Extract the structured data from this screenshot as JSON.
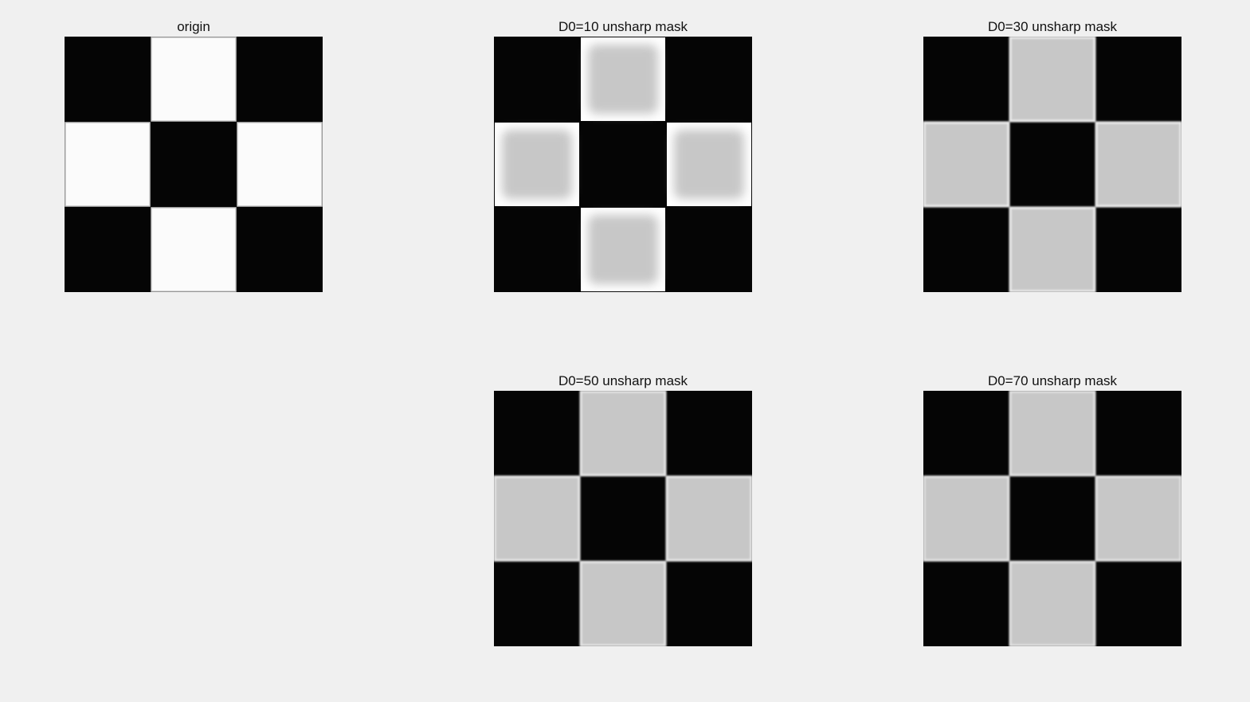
{
  "figure": {
    "background": "#f0f0f0",
    "panels": [
      {
        "id": "origin",
        "title": "origin",
        "style": "origin",
        "colors": {
          "dark": "#050505",
          "light": "#fbfbfb",
          "halo": "#c8c8c8"
        }
      },
      {
        "id": "d10",
        "title": "D0=10 unsharp mask",
        "style": "soft",
        "colors": {
          "dark": "#050505",
          "light": "#c7c7c7",
          "halo": "#ffffff"
        }
      },
      {
        "id": "d30",
        "title": "D0=30 unsharp mask",
        "style": "edge",
        "colors": {
          "dark": "#050505",
          "light": "#c7c7c7",
          "halo": "#eeeeee"
        }
      },
      {
        "id": "d50",
        "title": "D0=50 unsharp mask",
        "style": "edge",
        "colors": {
          "dark": "#050505",
          "light": "#c7c7c7",
          "halo": "#e8e8e8"
        }
      },
      {
        "id": "d70",
        "title": "D0=70 unsharp mask",
        "style": "edge",
        "colors": {
          "dark": "#050505",
          "light": "#c7c7c7",
          "halo": "#e4e4e4"
        }
      }
    ]
  }
}
